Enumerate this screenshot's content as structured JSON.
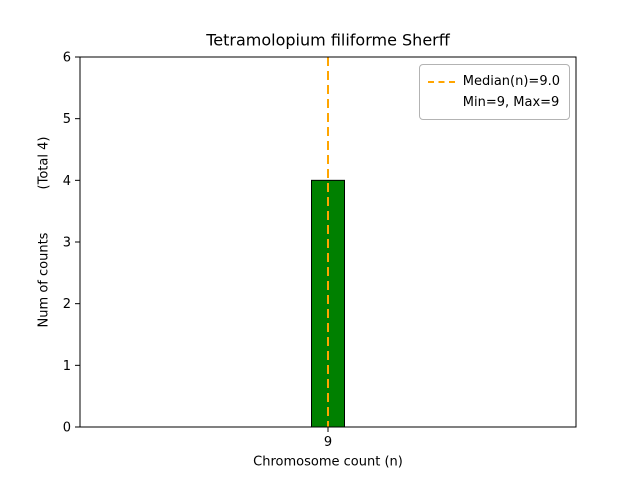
{
  "chart_data": {
    "type": "bar",
    "title": "Tetramolopium filiforme Sherff",
    "xlabel": "Chromosome count (n)",
    "ylabel": "Num of counts",
    "ylabel_note": "(Total 4)",
    "categories": [
      "9"
    ],
    "values": [
      4
    ],
    "total_counts": 4,
    "ylim": [
      0,
      6
    ],
    "yticks": [
      0,
      1,
      2,
      3,
      4,
      5,
      6
    ],
    "bar_color": "#008000",
    "bar_edge_color": "#000000",
    "background": "#ffffff",
    "grid": false,
    "median_line": {
      "value": 9.0,
      "color": "#ffa500",
      "style": "dashed"
    },
    "legend": {
      "position": "upper-right",
      "entries": [
        {
          "label": "Median(n)=9.0",
          "handle": "dashed-line",
          "color": "#ffa500"
        },
        {
          "label": "Min=9, Max=9",
          "handle": "none"
        }
      ]
    }
  }
}
